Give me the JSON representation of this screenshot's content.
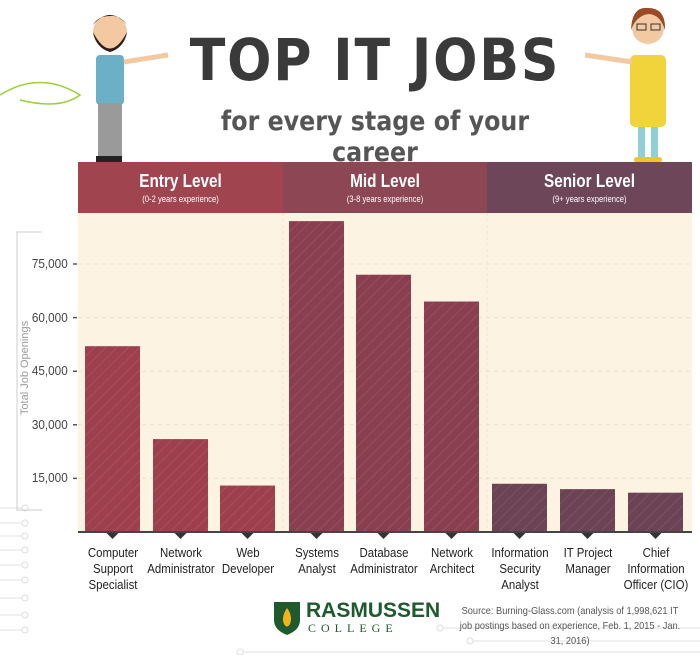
{
  "title": "TOP IT JOBS",
  "subtitle": "for every stage of your career",
  "levels": [
    {
      "title": "Entry Level",
      "sub": "(0-2 years experience)",
      "color": "#a0444f"
    },
    {
      "title": "Mid Level",
      "sub": "(3-8 years experience)",
      "color": "#8c4654"
    },
    {
      "title": "Senior Level",
      "sub": "(9+ years experience)",
      "color": "#6e4659"
    }
  ],
  "chart_data": {
    "type": "bar",
    "ylabel": "Total Job Openings",
    "ylim": [
      0,
      90000
    ],
    "yticks": [
      "15,000",
      "30,000",
      "45,000",
      "60,000",
      "75,000"
    ],
    "ytick_values": [
      15000,
      30000,
      45000,
      60000,
      75000
    ],
    "grid": true,
    "categories": [
      "Computer Support Specialist",
      "Network Administrator",
      "Web Developer",
      "Systems Analyst",
      "Database Administrator",
      "Network Architect",
      "Information Security Analyst",
      "IT Project Manager",
      "Chief Information Officer (CIO)"
    ],
    "category_lines": [
      [
        "Computer",
        "Support",
        "Specialist"
      ],
      [
        "Network",
        "Administrator"
      ],
      [
        "Web",
        "Developer"
      ],
      [
        "Systems",
        "Analyst"
      ],
      [
        "Database",
        "Administrator"
      ],
      [
        "Network",
        "Architect"
      ],
      [
        "Information",
        "Security",
        "Analyst"
      ],
      [
        "IT Project",
        "Manager"
      ],
      [
        "Chief",
        "Information",
        "Officer (CIO)"
      ]
    ],
    "values": [
      52000,
      26000,
      13000,
      87000,
      72000,
      64500,
      13500,
      12000,
      11000
    ],
    "groups": [
      "Entry Level",
      "Entry Level",
      "Entry Level",
      "Mid Level",
      "Mid Level",
      "Mid Level",
      "Senior Level",
      "Senior Level",
      "Senior Level"
    ],
    "bar_colors": {
      "Entry Level": "#9e3f4e",
      "Mid Level": "#8a3f50",
      "Senior Level": "#6c4255"
    }
  },
  "logo": {
    "name": "RASMUSSEN",
    "sub": "COLLEGE",
    "color": "#1e5a2e"
  },
  "source": "Source: Burning-Glass.com (analysis of 1,998,621 IT job postings based on experience, Feb. 1, 2015 - Jan. 31, 2016)",
  "background_color": "#fdf3e3"
}
